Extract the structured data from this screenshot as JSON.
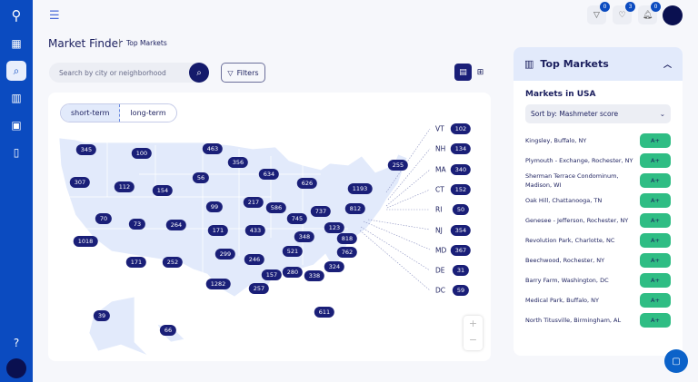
{
  "header": {
    "title": "Market Finder",
    "breadcrumb": "Top Markets",
    "filter_count": "0",
    "favorites_count": "3",
    "notifications_count": "0"
  },
  "search": {
    "placeholder": "Search by city or neighborhood",
    "filters_label": "Filters"
  },
  "map": {
    "tabs": [
      "short-term",
      "long-term"
    ],
    "active_tab": "short-term",
    "states": {
      "WA": "345",
      "MT": "100",
      "ND": "463",
      "MN": "356",
      "OR": "307",
      "ID": "112",
      "WY": "154",
      "SD": "56",
      "WI": "634",
      "MI": "626",
      "NE": "99",
      "IA": "217",
      "IL": "586",
      "OH": "737",
      "IN": "745",
      "NV": "70",
      "UT": "73",
      "CO": "264",
      "KS": "171",
      "MO": "433",
      "KY": "348",
      "WV": "123",
      "VA": "818",
      "CA": "1018",
      "TN": "521",
      "NC": "762",
      "OK": "299",
      "AR": "246",
      "SC": "324",
      "AZ": "171",
      "NM": "252",
      "MS": "157",
      "AL": "280",
      "GA": "338",
      "TX": "1282",
      "LA": "257",
      "FL": "611",
      "AK": "39",
      "HI": "66",
      "NY": "1193",
      "PA": "812",
      "ME": "255"
    },
    "callouts": [
      {
        "abbr": "VT",
        "value": "102"
      },
      {
        "abbr": "NH",
        "value": "134"
      },
      {
        "abbr": "MA",
        "value": "340"
      },
      {
        "abbr": "CT",
        "value": "152"
      },
      {
        "abbr": "RI",
        "value": "50"
      },
      {
        "abbr": "NJ",
        "value": "354"
      },
      {
        "abbr": "MD",
        "value": "367"
      },
      {
        "abbr": "DE",
        "value": "31"
      },
      {
        "abbr": "DC",
        "value": "59"
      }
    ],
    "zoom_in": "+",
    "zoom_out": "−"
  },
  "panel": {
    "title": "Top Markets",
    "subtitle": "Markets in USA",
    "sort": "Sort by: Mashmeter score",
    "markets": [
      {
        "name": "Kingsley, Buffalo, NY",
        "grade": "A+"
      },
      {
        "name": "Plymouth - Exchange, Rochester, NY",
        "grade": "A+"
      },
      {
        "name": "Sherman Terrace Condominum, Madison, WI",
        "grade": "A+"
      },
      {
        "name": "Oak Hill, Chattanooga, TN",
        "grade": "A+"
      },
      {
        "name": "Genesee - Jefferson, Rochester, NY",
        "grade": "A+"
      },
      {
        "name": "Revolution Park, Charlotte, NC",
        "grade": "A+"
      },
      {
        "name": "Beechwood, Rochester, NY",
        "grade": "A+"
      },
      {
        "name": "Barry Farm, Washington, DC",
        "grade": "A+"
      },
      {
        "name": "Medical Park, Buffalo, NY",
        "grade": "A+"
      },
      {
        "name": "North Titusville, Birmingham, AL",
        "grade": "A+"
      }
    ]
  },
  "colors": {
    "sidebar": "#0b4bc0",
    "pill": "#1a1f78",
    "grade": "#2fbd84",
    "map_fill": "#e2eafb"
  }
}
